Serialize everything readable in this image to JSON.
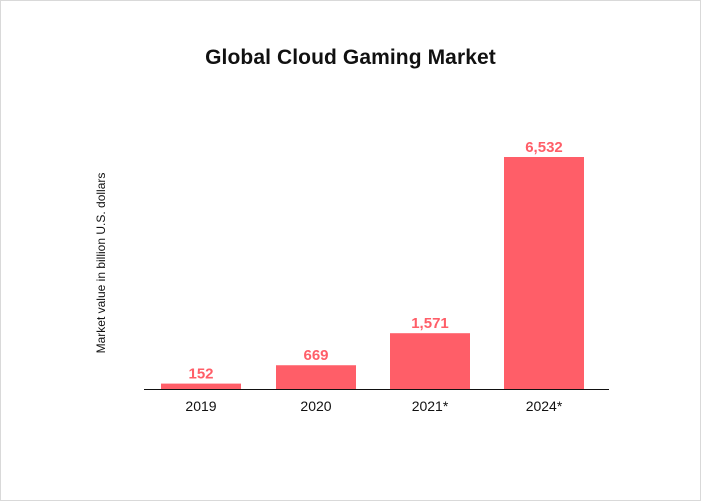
{
  "colors": {
    "bar": "#FF5E68",
    "bar_label": "#FF5E68",
    "axis": "#111111"
  },
  "chart_data": {
    "type": "bar",
    "title": "Global Cloud Gaming Market",
    "xlabel": "",
    "ylabel": "Market value in billion U.S. dollars",
    "categories": [
      "2019",
      "2020",
      "2021*",
      "2024*"
    ],
    "values": [
      152,
      669,
      1571,
      6532
    ],
    "value_labels": [
      "152",
      "669",
      "1,571",
      "6,532"
    ],
    "ylim": [
      0,
      6532
    ],
    "grid": false,
    "legend": "none"
  }
}
